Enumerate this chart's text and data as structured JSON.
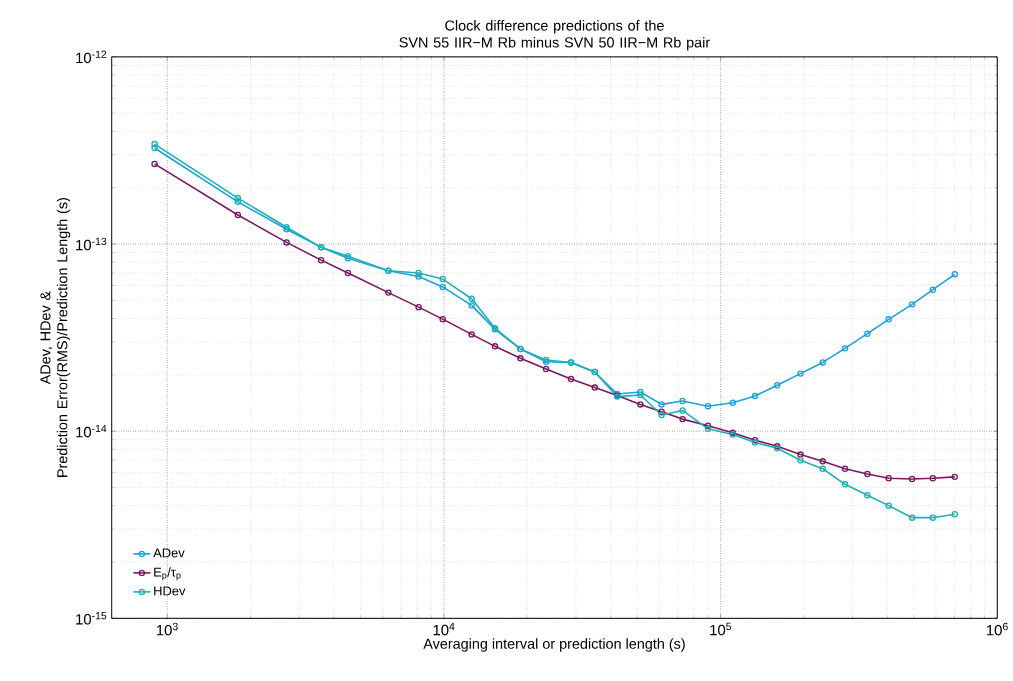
{
  "chart_data": {
    "type": "line",
    "title": "Clock difference predictions of the\nSVN 55 IIR−M Rb minus SVN 50 IIR−M Rb pair",
    "xlabel": "Averaging interval or prediction length (s)",
    "ylabel": "ADev, HDev &\nPrediction Error(RMS)/Prediction Length (s)",
    "x": [
      900,
      1800,
      2700,
      3600,
      4500,
      6300,
      8100,
      9900,
      12600,
      15300,
      18900,
      23400,
      28800,
      35100,
      42300,
      51300,
      61200,
      72900,
      90000,
      110700,
      133200,
      160200,
      194400,
      234000,
      281700,
      339300,
      405000,
      492300,
      585000,
      702000
    ],
    "series": [
      {
        "name": "ADev",
        "color": "#1ba1dd",
        "values": [
          3.26e-13,
          1.68e-13,
          1.2e-13,
          9.6e-14,
          8.4e-14,
          7.2e-14,
          6.7e-14,
          5.9e-14,
          4.7e-14,
          3.5e-14,
          2.75e-14,
          2.35e-14,
          2.33e-14,
          2.07e-14,
          1.58e-14,
          1.62e-14,
          1.39e-14,
          1.45e-14,
          1.36e-14,
          1.42e-14,
          1.54e-14,
          1.76e-14,
          2.03e-14,
          2.33e-14,
          2.77e-14,
          3.32e-14,
          3.96e-14,
          4.76e-14,
          5.7e-14,
          6.89e-14
        ]
      },
      {
        "name": "E$_{p}$/τ$_{p}$",
        "color": "#7b1762",
        "values": [
          2.68e-13,
          1.43e-13,
          1.02e-13,
          8.2e-14,
          7e-14,
          5.5e-14,
          4.6e-14,
          3.97e-14,
          3.29e-14,
          2.84e-14,
          2.45e-14,
          2.15e-14,
          1.9e-14,
          1.71e-14,
          1.55e-14,
          1.39e-14,
          1.27e-14,
          1.16e-14,
          1.07e-14,
          9.8e-15,
          8.95e-15,
          8.3e-15,
          7.5e-15,
          6.9e-15,
          6.3e-15,
          5.9e-15,
          5.6e-15,
          5.55e-15,
          5.6e-15,
          5.7e-15
        ]
      },
      {
        "name": "HDev",
        "color": "#1fb0b0",
        "values": [
          3.42e-13,
          1.76e-13,
          1.23e-13,
          9.6e-14,
          8.6e-14,
          7.2e-14,
          7e-14,
          6.5e-14,
          5.1e-14,
          3.55e-14,
          2.75e-14,
          2.4e-14,
          2.33e-14,
          2.07e-14,
          1.53e-14,
          1.56e-14,
          1.22e-14,
          1.29e-14,
          1.03e-14,
          9.6e-15,
          8.7e-15,
          8.1e-15,
          7e-15,
          6.3e-15,
          5.2e-15,
          4.55e-15,
          4e-15,
          3.45e-15,
          3.45e-15,
          3.6e-15
        ]
      }
    ],
    "log": "xy",
    "xlim": [
      630,
      1000000
    ],
    "ylim": [
      1e-15,
      1e-12
    ],
    "xticks": [
      {
        "value": 1000,
        "label": "10$^{3}$"
      },
      {
        "value": 10000,
        "label": "10$^{4}$"
      },
      {
        "value": 100000,
        "label": "10$^{5}$"
      },
      {
        "value": 1000000,
        "label": "10$^{6}$"
      }
    ],
    "yticks": [
      {
        "value": 1e-15,
        "label": "10$^{-15}$"
      },
      {
        "value": 1e-14,
        "label": "10$^{-14}$"
      },
      {
        "value": 1e-13,
        "label": "10$^{-13}$"
      },
      {
        "value": 1e-12,
        "label": "10$^{-12}$"
      }
    ],
    "grid": true,
    "legend": "bottom left",
    "marker": "circle",
    "line_style": "solid"
  }
}
